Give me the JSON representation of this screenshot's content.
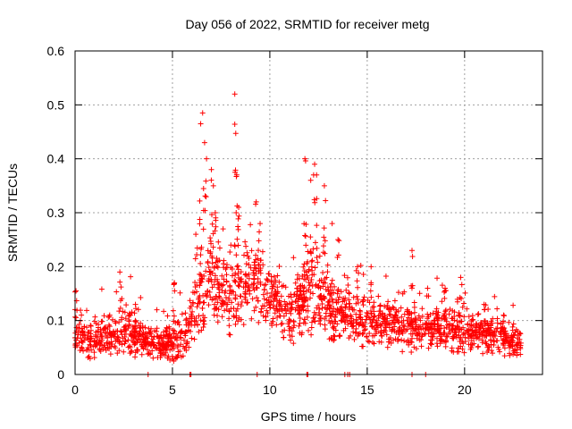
{
  "chart_data": {
    "type": "scatter",
    "title": "Day 056 of 2022, SRMTID for receiver metg",
    "xlabel": "GPS time / hours",
    "ylabel": "SRMTID / TECUs",
    "xlim": [
      0,
      24
    ],
    "ylim": [
      0,
      0.6
    ],
    "xticks": [
      0,
      5,
      10,
      15,
      20
    ],
    "xtick_labels": [
      "0",
      "5",
      "10",
      "15",
      "20"
    ],
    "yticks": [
      0,
      0.1,
      0.2,
      0.3,
      0.4,
      0.5,
      0.6
    ],
    "ytick_labels": [
      "0",
      "0.1",
      "0.2",
      "0.3",
      "0.4",
      "0.5",
      "0.6"
    ],
    "grid": true,
    "marker": "plus",
    "series": [
      {
        "name": "SRMTID",
        "color": "#ff0000",
        "envelope": {
          "x": [
            0,
            0.5,
            1,
            1.5,
            2,
            2.5,
            3,
            3.5,
            4,
            4.5,
            5,
            5.5,
            6,
            6.5,
            7,
            7.5,
            8,
            8.5,
            9,
            9.5,
            10,
            10.5,
            11,
            11.5,
            12,
            12.5,
            13,
            13.5,
            14,
            14.5,
            15,
            15.5,
            16,
            16.5,
            17,
            17.5,
            18,
            18.5,
            19,
            19.5,
            20,
            20.5,
            21,
            21.5,
            22,
            22.5,
            22.9
          ],
          "center": [
            0.07,
            0.065,
            0.065,
            0.07,
            0.075,
            0.08,
            0.075,
            0.07,
            0.055,
            0.055,
            0.06,
            0.07,
            0.1,
            0.14,
            0.17,
            0.15,
            0.13,
            0.14,
            0.18,
            0.17,
            0.15,
            0.13,
            0.11,
            0.13,
            0.16,
            0.15,
            0.13,
            0.12,
            0.11,
            0.1,
            0.1,
            0.1,
            0.095,
            0.09,
            0.09,
            0.085,
            0.08,
            0.085,
            0.085,
            0.08,
            0.08,
            0.075,
            0.075,
            0.075,
            0.07,
            0.065,
            0.055
          ],
          "spread": [
            0.04,
            0.035,
            0.04,
            0.045,
            0.05,
            0.055,
            0.05,
            0.04,
            0.03,
            0.035,
            0.04,
            0.045,
            0.06,
            0.09,
            0.1,
            0.09,
            0.08,
            0.08,
            0.09,
            0.08,
            0.07,
            0.06,
            0.06,
            0.07,
            0.09,
            0.08,
            0.07,
            0.06,
            0.05,
            0.05,
            0.05,
            0.05,
            0.05,
            0.05,
            0.05,
            0.05,
            0.04,
            0.045,
            0.045,
            0.045,
            0.045,
            0.04,
            0.04,
            0.04,
            0.035,
            0.035,
            0.03
          ]
        },
        "peaks": [
          {
            "x": 0.05,
            "y": 0.155
          },
          {
            "x": 2.3,
            "y": 0.19
          },
          {
            "x": 3.1,
            "y": 0.13
          },
          {
            "x": 4.2,
            "y": 0.12
          },
          {
            "x": 5.1,
            "y": 0.17
          },
          {
            "x": 6.2,
            "y": 0.26
          },
          {
            "x": 6.45,
            "y": 0.465
          },
          {
            "x": 6.55,
            "y": 0.485
          },
          {
            "x": 6.65,
            "y": 0.43
          },
          {
            "x": 6.75,
            "y": 0.4
          },
          {
            "x": 7.0,
            "y": 0.38
          },
          {
            "x": 7.1,
            "y": 0.35
          },
          {
            "x": 7.2,
            "y": 0.3
          },
          {
            "x": 7.6,
            "y": 0.27
          },
          {
            "x": 8.0,
            "y": 0.24
          },
          {
            "x": 8.2,
            "y": 0.52
          },
          {
            "x": 8.25,
            "y": 0.447
          },
          {
            "x": 8.3,
            "y": 0.37
          },
          {
            "x": 8.4,
            "y": 0.31
          },
          {
            "x": 9.3,
            "y": 0.32
          },
          {
            "x": 9.5,
            "y": 0.28
          },
          {
            "x": 11.8,
            "y": 0.4
          },
          {
            "x": 12.1,
            "y": 0.36
          },
          {
            "x": 12.3,
            "y": 0.39
          },
          {
            "x": 12.4,
            "y": 0.37
          },
          {
            "x": 12.8,
            "y": 0.35
          },
          {
            "x": 13.2,
            "y": 0.28
          },
          {
            "x": 13.5,
            "y": 0.25
          },
          {
            "x": 14.5,
            "y": 0.2
          },
          {
            "x": 15.2,
            "y": 0.2
          },
          {
            "x": 17.3,
            "y": 0.23
          },
          {
            "x": 18.1,
            "y": 0.16
          },
          {
            "x": 19.0,
            "y": 0.16
          },
          {
            "x": 19.8,
            "y": 0.18
          },
          {
            "x": 21.0,
            "y": 0.13
          },
          {
            "x": 22.0,
            "y": 0.11
          }
        ],
        "baseline_hits_x": [
          3.75,
          5.9,
          5.95,
          9.35,
          11.9,
          11.95,
          13.85,
          14.0,
          14.1,
          17.3,
          18.0
        ]
      }
    ]
  }
}
